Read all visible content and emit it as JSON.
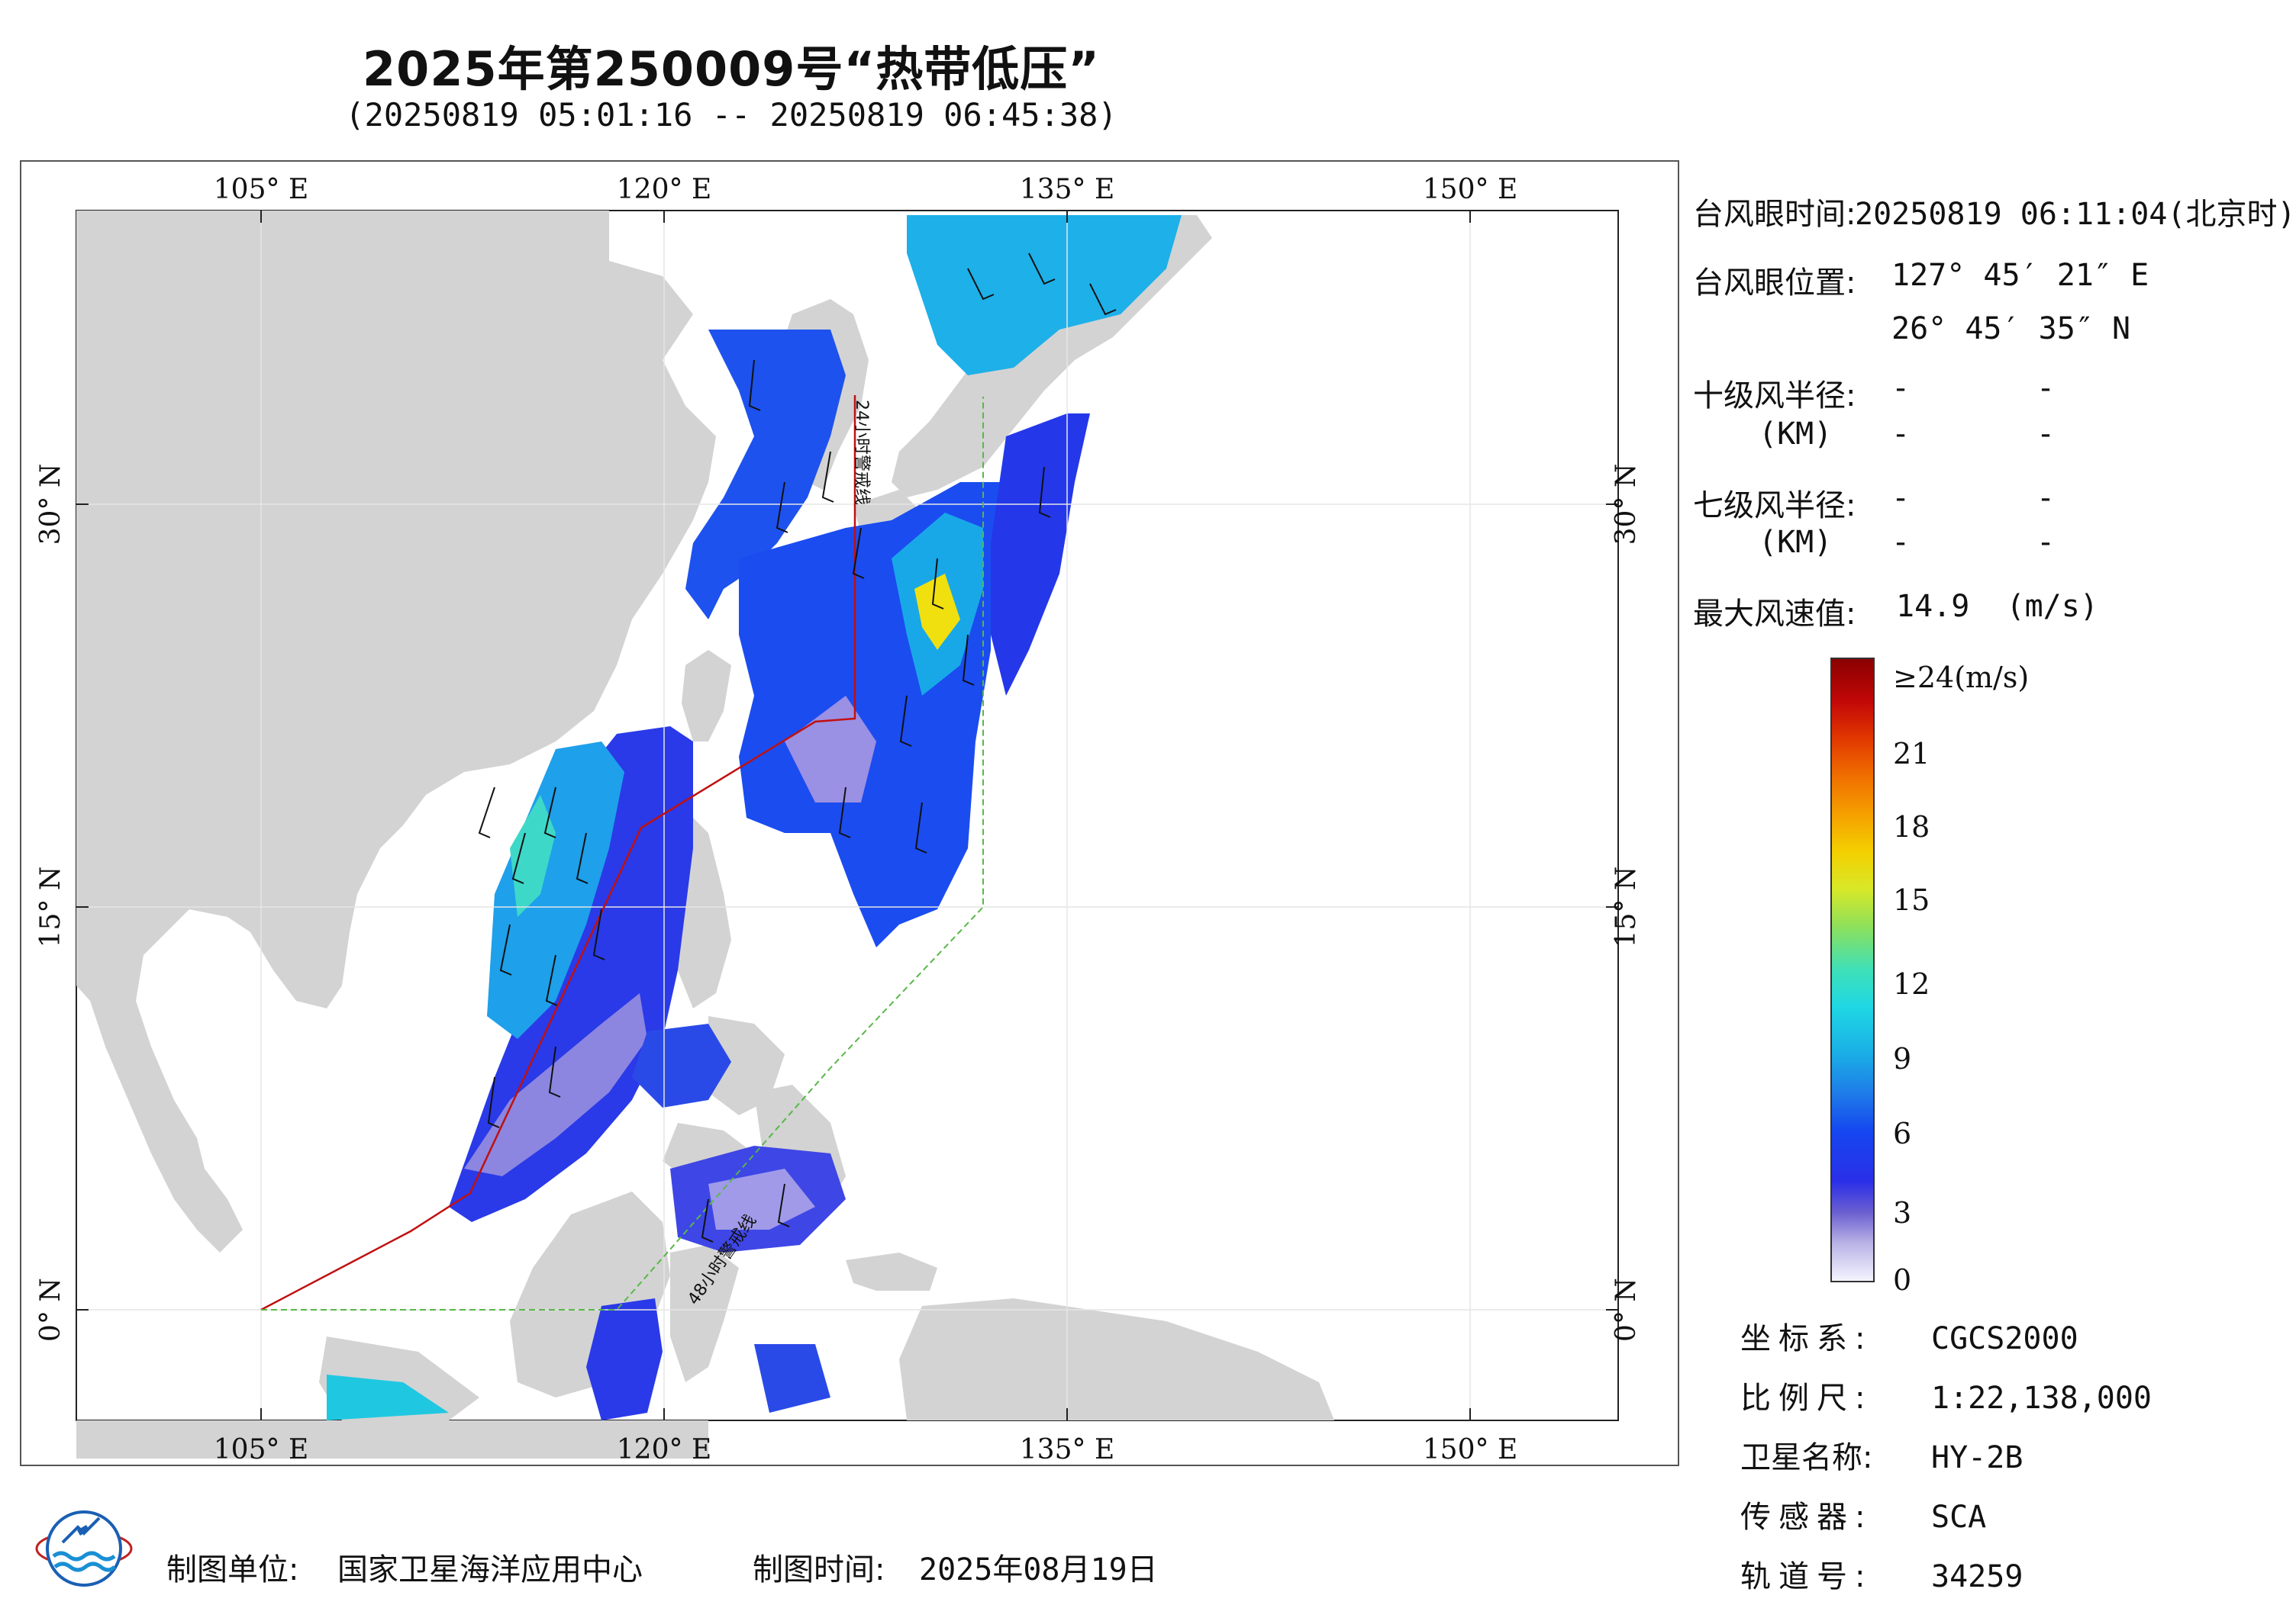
{
  "header": {
    "title": "2025年第250009号“热带低压”",
    "time_range": "(20250819 05:01:16 -- 20250819 06:45:38)"
  },
  "map": {
    "lon_labels": [
      "105° E",
      "120° E",
      "135° E",
      "150° E"
    ],
    "lat_labels": [
      "30° N",
      "15° N",
      "0° N"
    ],
    "line_labels": [
      "24小时警戒线",
      "48小时警戒线"
    ],
    "colors": {
      "land": "#d3d3d3",
      "sea": "#ffffff",
      "warning24": "#c01010",
      "warning48": "#58b848"
    }
  },
  "info": {
    "eye_time_label": "台风眼时间:",
    "eye_time_value": "20250819 06:11:04(北京时)",
    "eye_pos_label": "台风眼位置:",
    "eye_lon": "127° 45′ 21″ E",
    "eye_lat": "26° 45′ 35″ N",
    "r10_label": "十级风半径:",
    "r7_label": "七级风半径:",
    "unit_km": "(KM)",
    "dash": "-",
    "max_wind_label": "最大风速值:",
    "max_wind_value": "14.9  (m/s)"
  },
  "colorbar": {
    "ticks": [
      "≥24(m/s)",
      "21",
      "18",
      "15",
      "12",
      "9",
      "6",
      "3",
      "0"
    ]
  },
  "meta": {
    "crs_label": "坐标系:",
    "crs_value": "CGCS2000",
    "scale_label": "比例尺:",
    "scale_value": "1:22,138,000",
    "satellite_label": "卫星名称:",
    "satellite_value": "HY-2B",
    "sensor_label": "传感器:",
    "sensor_value": "SCA",
    "orbit_label": "轨道号:",
    "orbit_value": "34259"
  },
  "footer": {
    "org_label": "制图单位:",
    "org_value": "国家卫星海洋应用中心",
    "date_label": "制图时间:",
    "date_value": "2025年08月19日"
  }
}
